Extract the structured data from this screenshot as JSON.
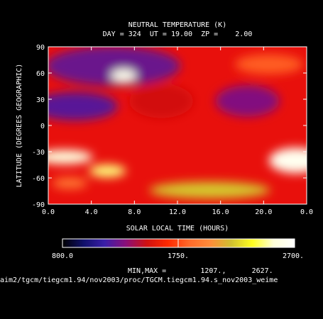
{
  "chart_data": {
    "type": "heatmap",
    "title": "NEUTRAL TEMPERATURE (K)",
    "subtitle": "DAY = 324  UT = 19.00  ZP =    2.00",
    "xlabel": "SOLAR LOCAL TIME (HOURS)",
    "ylabel": "LATITUDE (DEGREES GEOGRAPHIC)",
    "xlim": [
      0,
      24
    ],
    "ylim": [
      -90,
      90
    ],
    "x_ticks": [
      "0.0",
      "4.0",
      "8.0",
      "12.0",
      "16.0",
      "20.0",
      "0.0"
    ],
    "y_ticks": [
      "90",
      "60",
      "30",
      "0",
      "-30",
      "-60",
      "-90"
    ],
    "colorbar": {
      "min_label": "800.0",
      "mid_label": "1750.",
      "max_label": "2700.",
      "range": [
        800,
        2700
      ],
      "colors": [
        "#000000",
        "#10106a",
        "#3a1ea8",
        "#8a0f7a",
        "#d01010",
        "#ff2a00",
        "#ff6a2a",
        "#ff8c3a",
        "#d0c030",
        "#ffff20",
        "#ffffd8",
        "#ffffff"
      ]
    },
    "minmax_text": "MIN,MAX =        1207.,      2627.",
    "footer": "aim2/tgcm/tiegcm1.94/nov2003/proc/TGCM.tiegcm1.94.s_nov2003_weime",
    "features": [
      {
        "lt": 6.0,
        "lat": 68,
        "value": 1250
      },
      {
        "lt": 2.5,
        "lat": 22,
        "value": 1210
      },
      {
        "lt": 18.5,
        "lat": 28,
        "value": 1300
      },
      {
        "lt": 7.0,
        "lat": 57,
        "value": 2620
      },
      {
        "lt": 1.5,
        "lat": -36,
        "value": 2560
      },
      {
        "lt": 5.5,
        "lat": -52,
        "value": 2440
      },
      {
        "lt": 23.0,
        "lat": -40,
        "value": 2627
      },
      {
        "lt": 15.0,
        "lat": -74,
        "value": 2200
      },
      {
        "lt": 2.0,
        "lat": -66,
        "value": 1900
      },
      {
        "lt": 10.5,
        "lat": 28,
        "value": 1500
      },
      {
        "lt": 20.5,
        "lat": 70,
        "value": 1800
      }
    ]
  }
}
